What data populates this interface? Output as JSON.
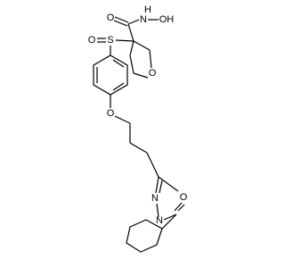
{
  "atoms": {
    "carbonyl_o": "O",
    "amide_n": "N",
    "amide_h": "H",
    "hydroxyl": "OH",
    "sulfonyl_o": "O",
    "sulfur": "S",
    "ring_o": "O",
    "ether_o": "O",
    "oxadiazole_n": "N",
    "oxadiazole_n2": "N",
    "oxadiazole_o": "O"
  }
}
